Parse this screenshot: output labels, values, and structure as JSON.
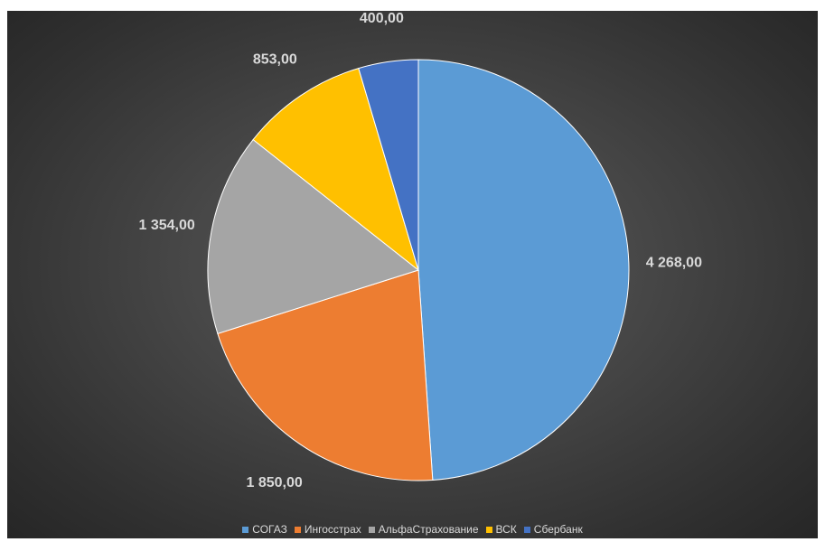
{
  "chart_data": {
    "type": "pie",
    "title": "",
    "categories": [
      "СОГАЗ",
      "Ингосстрах",
      "АльфаСтрахование",
      "ВСК",
      "Сбербанк"
    ],
    "values": [
      4268,
      1850,
      1354,
      853,
      400
    ],
    "data_labels": [
      "4 268,00",
      "1 850,00",
      "1 354,00",
      "853,00",
      "400,00"
    ],
    "colors": [
      "#5b9bd5",
      "#ed7d31",
      "#a5a5a5",
      "#ffc000",
      "#4472c4"
    ],
    "legend_position": "bottom",
    "start_angle": "12 o'clock, clockwise"
  },
  "page": {
    "background": "#404040",
    "title_fragment_color": "#2a39ff"
  }
}
